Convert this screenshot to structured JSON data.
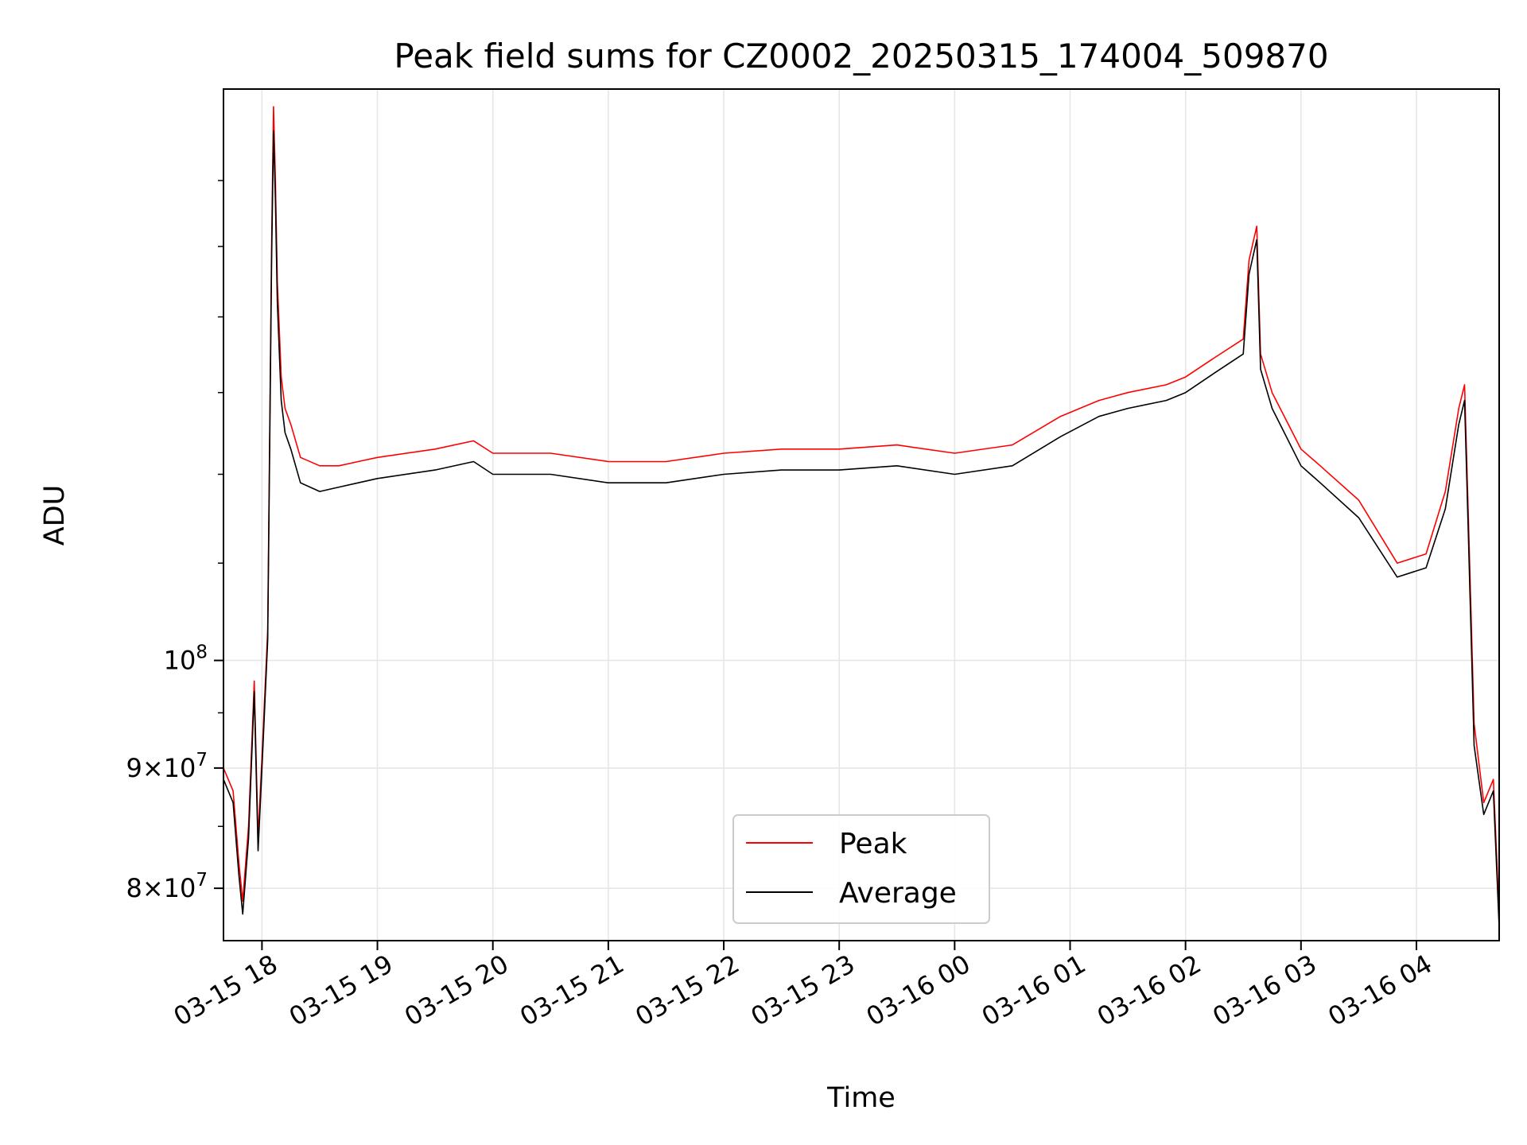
{
  "chart_data": {
    "type": "line",
    "title": "Peak field sums for CZ0002_20250315_174004_509870",
    "xlabel": "Time",
    "ylabel": "ADU",
    "yscale": "log",
    "grid": true,
    "legend_position": "lower center",
    "x_tick_labels": [
      "03-15 18",
      "03-15 19",
      "03-15 20",
      "03-15 21",
      "03-15 22",
      "03-15 23",
      "03-16 00",
      "03-16 01",
      "03-16 02",
      "03-16 03",
      "03-16 04"
    ],
    "x_tick_times": [
      "2025-03-15 18:00",
      "2025-03-15 19:00",
      "2025-03-15 20:00",
      "2025-03-15 21:00",
      "2025-03-15 22:00",
      "2025-03-15 23:00",
      "2025-03-16 00:00",
      "2025-03-16 01:00",
      "2025-03-16 02:00",
      "2025-03-16 03:00",
      "2025-03-16 04:00"
    ],
    "xlim": [
      "2025-03-15 17:40",
      "2025-03-16 04:43"
    ],
    "y_tick_labels": [
      {
        "base": "8",
        "exp": "7",
        "value": 80000000,
        "mantissa": true
      },
      {
        "base": "9",
        "exp": "7",
        "value": 90000000,
        "mantissa": true
      },
      {
        "base": "10",
        "exp": "8",
        "value": 100000000,
        "mantissa": false
      }
    ],
    "ylim": [
      76000000,
      175000000
    ],
    "series": [
      {
        "name": "Peak",
        "color": "#ff0000",
        "x": [
          "2025-03-15 17:40",
          "2025-03-15 17:45",
          "2025-03-15 17:48",
          "2025-03-15 17:50",
          "2025-03-15 17:53",
          "2025-03-15 17:56",
          "2025-03-15 17:58",
          "2025-03-15 18:00",
          "2025-03-15 18:03",
          "2025-03-15 18:05",
          "2025-03-15 18:06",
          "2025-03-15 18:07",
          "2025-03-15 18:08",
          "2025-03-15 18:10",
          "2025-03-15 18:12",
          "2025-03-15 18:15",
          "2025-03-15 18:20",
          "2025-03-15 18:30",
          "2025-03-15 18:40",
          "2025-03-15 18:50",
          "2025-03-15 19:00",
          "2025-03-15 19:30",
          "2025-03-15 19:50",
          "2025-03-15 20:00",
          "2025-03-15 20:30",
          "2025-03-15 21:00",
          "2025-03-15 21:30",
          "2025-03-15 22:00",
          "2025-03-15 22:30",
          "2025-03-15 23:00",
          "2025-03-15 23:30",
          "2025-03-16 00:00",
          "2025-03-16 00:30",
          "2025-03-16 00:55",
          "2025-03-16 01:15",
          "2025-03-16 01:30",
          "2025-03-16 01:50",
          "2025-03-16 02:00",
          "2025-03-16 02:15",
          "2025-03-16 02:30",
          "2025-03-16 02:33",
          "2025-03-16 02:37",
          "2025-03-16 02:39",
          "2025-03-16 02:45",
          "2025-03-16 03:00",
          "2025-03-16 03:10",
          "2025-03-16 03:30",
          "2025-03-16 03:50",
          "2025-03-16 04:05",
          "2025-03-16 04:15",
          "2025-03-16 04:22",
          "2025-03-16 04:25",
          "2025-03-16 04:27",
          "2025-03-16 04:30",
          "2025-03-16 04:35",
          "2025-03-16 04:40",
          "2025-03-16 04:43"
        ],
        "y": [
          90000000,
          88000000,
          82000000,
          79000000,
          85000000,
          98000000,
          84000000,
          91000000,
          103000000,
          150000000,
          172000000,
          160000000,
          145000000,
          132000000,
          128000000,
          126000000,
          122000000,
          121000000,
          121000000,
          121500000,
          122000000,
          123000000,
          124000000,
          122500000,
          122500000,
          121500000,
          121500000,
          122500000,
          123000000,
          123000000,
          123500000,
          122500000,
          123500000,
          127000000,
          129000000,
          130000000,
          131000000,
          132000000,
          134500000,
          137000000,
          148000000,
          153000000,
          135000000,
          130000000,
          123000000,
          121000000,
          117000000,
          110000000,
          111000000,
          118000000,
          128000000,
          131000000,
          115000000,
          94000000,
          87000000,
          89000000,
          78000000
        ]
      },
      {
        "name": "Average",
        "color": "#000000",
        "x": [
          "2025-03-15 17:40",
          "2025-03-15 17:45",
          "2025-03-15 17:48",
          "2025-03-15 17:50",
          "2025-03-15 17:53",
          "2025-03-15 17:56",
          "2025-03-15 17:58",
          "2025-03-15 18:00",
          "2025-03-15 18:03",
          "2025-03-15 18:05",
          "2025-03-15 18:06",
          "2025-03-15 18:07",
          "2025-03-15 18:08",
          "2025-03-15 18:10",
          "2025-03-15 18:12",
          "2025-03-15 18:15",
          "2025-03-15 18:20",
          "2025-03-15 18:30",
          "2025-03-15 18:40",
          "2025-03-15 18:50",
          "2025-03-15 19:00",
          "2025-03-15 19:30",
          "2025-03-15 19:50",
          "2025-03-15 20:00",
          "2025-03-15 20:30",
          "2025-03-15 21:00",
          "2025-03-15 21:30",
          "2025-03-15 22:00",
          "2025-03-15 22:30",
          "2025-03-15 23:00",
          "2025-03-15 23:30",
          "2025-03-16 00:00",
          "2025-03-16 00:30",
          "2025-03-16 00:55",
          "2025-03-16 01:15",
          "2025-03-16 01:30",
          "2025-03-16 01:50",
          "2025-03-16 02:00",
          "2025-03-16 02:15",
          "2025-03-16 02:30",
          "2025-03-16 02:33",
          "2025-03-16 02:37",
          "2025-03-16 02:39",
          "2025-03-16 02:45",
          "2025-03-16 03:00",
          "2025-03-16 03:10",
          "2025-03-16 03:30",
          "2025-03-16 03:50",
          "2025-03-16 04:05",
          "2025-03-16 04:15",
          "2025-03-16 04:22",
          "2025-03-16 04:25",
          "2025-03-16 04:27",
          "2025-03-16 04:30",
          "2025-03-16 04:35",
          "2025-03-16 04:40",
          "2025-03-16 04:43"
        ],
        "y": [
          89000000,
          87000000,
          81000000,
          78000000,
          84000000,
          97000000,
          83000000,
          90000000,
          102000000,
          148000000,
          168000000,
          157000000,
          142000000,
          129000000,
          125000000,
          123000000,
          119000000,
          118000000,
          118500000,
          119000000,
          119500000,
          120500000,
          121500000,
          120000000,
          120000000,
          119000000,
          119000000,
          120000000,
          120500000,
          120500000,
          121000000,
          120000000,
          121000000,
          124500000,
          127000000,
          128000000,
          129000000,
          130000000,
          132500000,
          135000000,
          146000000,
          151000000,
          133000000,
          128000000,
          121000000,
          119000000,
          115000000,
          108500000,
          109500000,
          116000000,
          126000000,
          129000000,
          113000000,
          92000000,
          86000000,
          88000000,
          77000000
        ]
      }
    ]
  }
}
